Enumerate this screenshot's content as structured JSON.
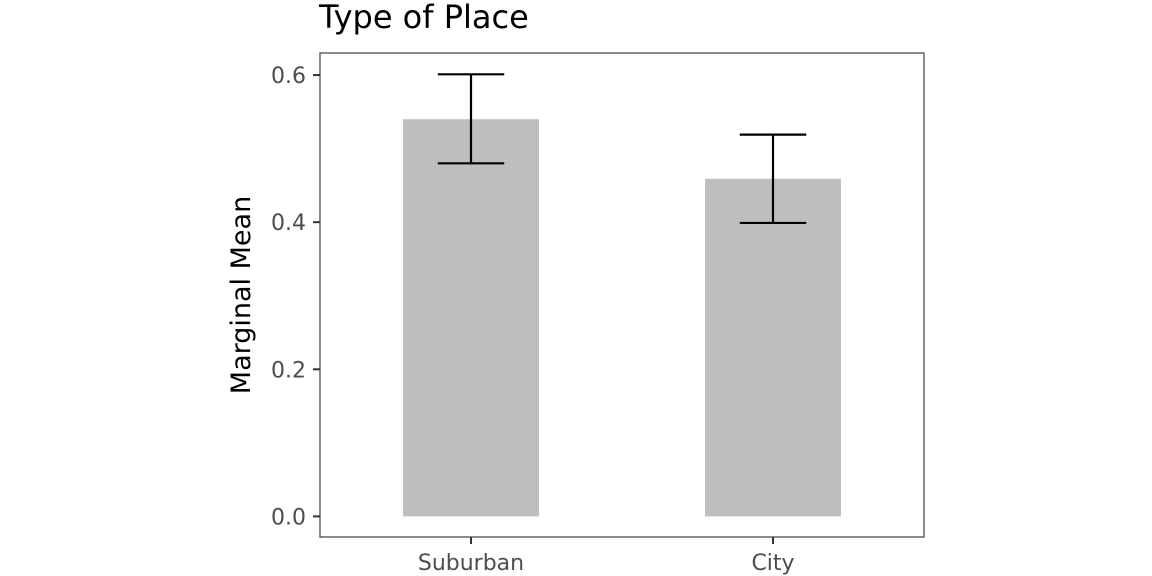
{
  "chart_data": {
    "type": "bar",
    "title": "Type of Place",
    "xlabel": "",
    "ylabel": "Marginal Mean",
    "categories": [
      "Suburban",
      "City"
    ],
    "values": [
      0.54,
      0.459
    ],
    "error_bars": [
      {
        "lower": 0.48,
        "upper": 0.601
      },
      {
        "lower": 0.399,
        "upper": 0.519
      }
    ],
    "ylim": [
      -0.028,
      0.63
    ],
    "yticks": [
      0.0,
      0.2,
      0.4,
      0.6
    ],
    "ytick_labels": [
      "0.0",
      "0.2",
      "0.4",
      "0.6"
    ],
    "grid": false,
    "legend": "none",
    "colors": {
      "bar": "#bebebe",
      "error_bar": "#000000",
      "panel_border": "#4d4d4d",
      "tick_label": "#4d4d4d"
    }
  }
}
